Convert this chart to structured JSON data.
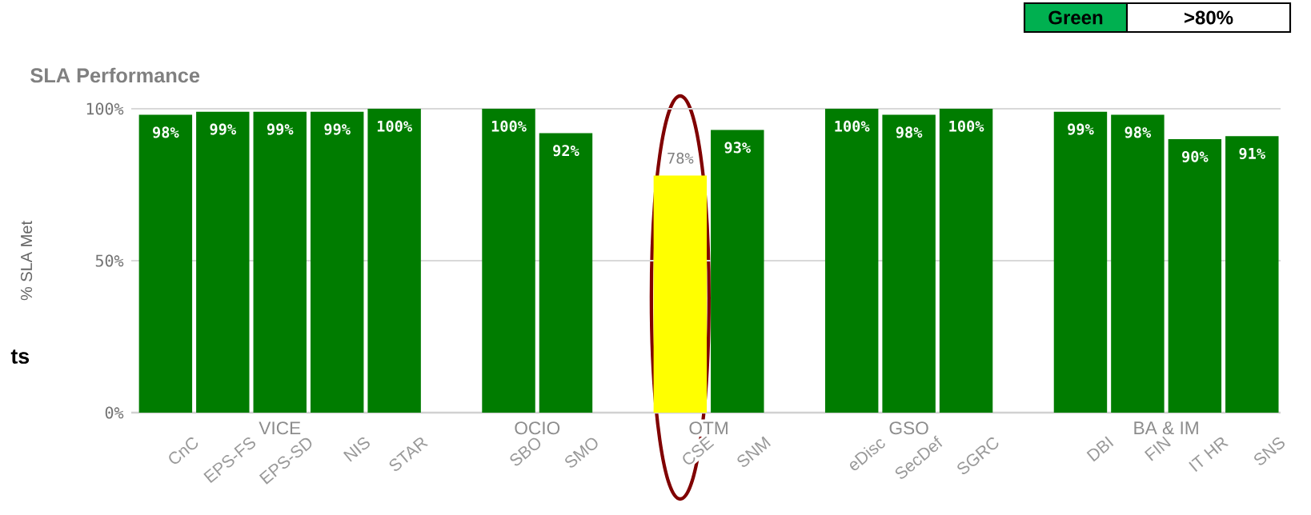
{
  "chart_data": {
    "type": "bar",
    "title": "SLA Performance",
    "ylabel": "% SLA Met",
    "categories": [
      "CnC",
      "EPS-FS",
      "EPS-SD",
      "NIS",
      "STAR",
      null,
      "SBO",
      "SMO",
      null,
      "CSE",
      "SNM",
      null,
      "eDisc",
      "SecDef",
      "SGRC",
      null,
      "DBI",
      "FIN",
      "IT HR",
      "SNS"
    ],
    "values": [
      98,
      99,
      99,
      99,
      100,
      null,
      100,
      92,
      null,
      78,
      93,
      null,
      100,
      98,
      100,
      null,
      99,
      98,
      90,
      91
    ],
    "value_labels": [
      "98%",
      "99%",
      "99%",
      "99%",
      "100%",
      null,
      "100%",
      "92%",
      null,
      "78%",
      "93%",
      null,
      "100%",
      "98%",
      "100%",
      null,
      "99%",
      "98%",
      "90%",
      "91%"
    ],
    "colors": [
      "#007c00",
      "#007c00",
      "#007c00",
      "#007c00",
      "#007c00",
      null,
      "#007c00",
      "#007c00",
      null,
      "#ffff00",
      "#007c00",
      null,
      "#007c00",
      "#007c00",
      "#007c00",
      null,
      "#007c00",
      "#007c00",
      "#007c00",
      "#007c00"
    ],
    "ylim": [
      0,
      100
    ],
    "yticks": [
      {
        "value": 0,
        "label": "0%"
      },
      {
        "value": 50,
        "label": "50%"
      },
      {
        "value": 100,
        "label": "100%"
      }
    ],
    "grid": "y",
    "annotations": [
      "VICE",
      "OCIO",
      "OTM",
      "GSO",
      "BA & IM",
      "Green",
      ">80%",
      "ts"
    ]
  }
}
